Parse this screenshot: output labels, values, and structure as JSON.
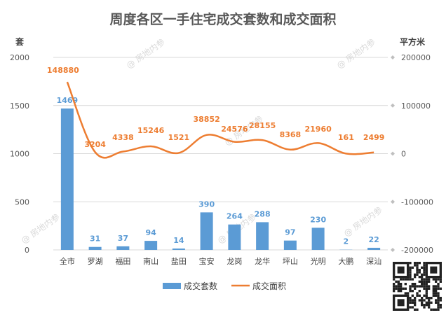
{
  "chart_data": {
    "type": "bar",
    "title": "周度各区一手住宅成交套数和成交面积",
    "categories": [
      "全市",
      "罗湖",
      "福田",
      "南山",
      "盐田",
      "宝安",
      "龙岗",
      "龙华",
      "坪山",
      "光明",
      "大鹏",
      "深汕"
    ],
    "left_axis": {
      "unit": "套",
      "ylim": [
        0,
        2000
      ],
      "ticks": [
        0,
        500,
        1000,
        1500,
        2000
      ]
    },
    "right_axis": {
      "unit": "平方米",
      "ylim": [
        -200000,
        200000
      ],
      "ticks": [
        -200000,
        -100000,
        0,
        100000,
        200000
      ]
    },
    "series": [
      {
        "name": "成交套数",
        "type": "bar",
        "axis": "left",
        "color": "#5b9bd5",
        "values": [
          1469,
          31,
          37,
          94,
          14,
          390,
          264,
          288,
          97,
          230,
          2,
          22
        ]
      },
      {
        "name": "成交面积",
        "type": "line",
        "axis": "right",
        "color": "#ed7d31",
        "values": [
          148880,
          3204,
          4338,
          15246,
          1521,
          38852,
          24576,
          28155,
          8368,
          21960,
          161,
          2499
        ]
      }
    ],
    "grid": true,
    "legend": "bottom-center",
    "watermark": "@ 房地内参"
  }
}
